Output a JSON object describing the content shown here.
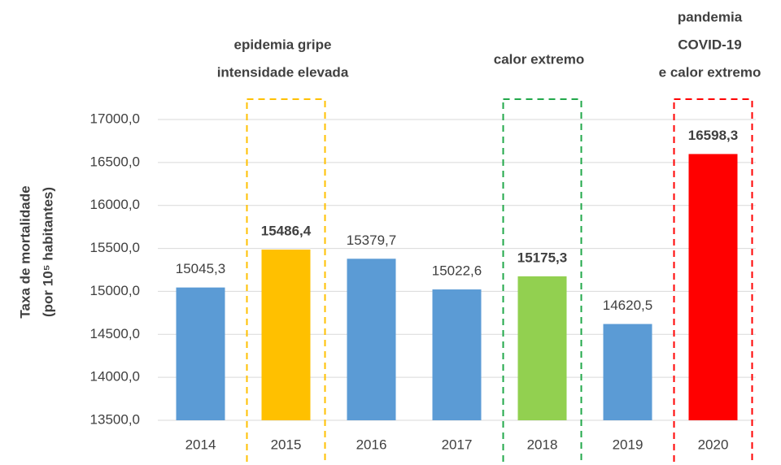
{
  "chart_data": {
    "type": "bar",
    "y_label_lines": [
      "Taxa de mortalidade",
      "(por 10⁵ habitantes)"
    ],
    "categories": [
      "2014",
      "2015",
      "2016",
      "2017",
      "2018",
      "2019",
      "2020"
    ],
    "values": [
      15045.3,
      15486.4,
      15379.7,
      15022.6,
      15175.3,
      14620.5,
      16598.3
    ],
    "value_labels": [
      "15045,3",
      "15486,4",
      "15379,7",
      "15022,6",
      "15175,3",
      "14620,5",
      "16598,3"
    ],
    "colors": [
      "#5b9bd5",
      "#ffc000",
      "#5b9bd5",
      "#5b9bd5",
      "#92d050",
      "#5b9bd5",
      "#ff0000"
    ],
    "value_label_colors": [
      "#404040",
      "#ffc000",
      "#404040",
      "#404040",
      "#22a84a",
      "#404040",
      "#ff0000"
    ],
    "ylim": [
      13500,
      17000
    ],
    "yticks": [
      {
        "value": 13500,
        "label": "13500,0"
      },
      {
        "value": 14000,
        "label": "14000,0"
      },
      {
        "value": 14500,
        "label": "14500,0"
      },
      {
        "value": 15000,
        "label": "15000,0"
      },
      {
        "value": 15500,
        "label": "15500,0"
      },
      {
        "value": 16000,
        "label": "16000,0"
      },
      {
        "value": 16500,
        "label": "16500,0"
      },
      {
        "value": 17000,
        "label": "17000,0"
      }
    ],
    "grid": true,
    "annotations": [
      {
        "lines": [
          "epidemia gripe",
          "intensidade elevada"
        ],
        "color": "#ffc000"
      },
      {
        "lines": [
          "calor extremo"
        ],
        "color": "#22a84a"
      },
      {
        "lines": [
          "pandemia",
          "COVID-19",
          "e calor extremo"
        ],
        "color": "#ff0000"
      }
    ]
  }
}
